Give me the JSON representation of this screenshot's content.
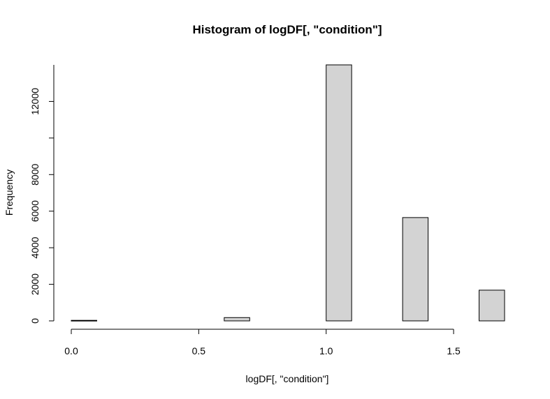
{
  "chart_data": {
    "type": "histogram",
    "title": "Histogram of logDF[, \"condition\"]",
    "xlabel": "logDF[, \"condition\"]",
    "ylabel": "Frequency",
    "bins": [
      {
        "x0": 0.0,
        "x1": 0.1,
        "count": 30
      },
      {
        "x0": 0.1,
        "x1": 0.2,
        "count": 0
      },
      {
        "x0": 0.2,
        "x1": 0.3,
        "count": 0
      },
      {
        "x0": 0.3,
        "x1": 0.4,
        "count": 0
      },
      {
        "x0": 0.4,
        "x1": 0.5,
        "count": 0
      },
      {
        "x0": 0.5,
        "x1": 0.6,
        "count": 0
      },
      {
        "x0": 0.6,
        "x1": 0.7,
        "count": 180
      },
      {
        "x0": 0.7,
        "x1": 0.8,
        "count": 0
      },
      {
        "x0": 0.8,
        "x1": 0.9,
        "count": 0
      },
      {
        "x0": 0.9,
        "x1": 1.0,
        "count": 0
      },
      {
        "x0": 1.0,
        "x1": 1.1,
        "count": 14000
      },
      {
        "x0": 1.1,
        "x1": 1.2,
        "count": 0
      },
      {
        "x0": 1.2,
        "x1": 1.3,
        "count": 0
      },
      {
        "x0": 1.3,
        "x1": 1.4,
        "count": 5650
      },
      {
        "x0": 1.4,
        "x1": 1.5,
        "count": 0
      },
      {
        "x0": 1.5,
        "x1": 1.6,
        "count": 0
      },
      {
        "x0": 1.6,
        "x1": 1.7,
        "count": 1680
      }
    ],
    "xlim": [
      0.0,
      1.7
    ],
    "ylim": [
      0,
      14000
    ],
    "xticks": [
      "0.0",
      "0.5",
      "1.0",
      "1.5"
    ],
    "yticks": [
      "0",
      "2000",
      "4000",
      "6000",
      "8000",
      "12000"
    ],
    "bar_color": "#d3d3d3",
    "border_color": "#000000",
    "grid": false,
    "legend": "none"
  }
}
